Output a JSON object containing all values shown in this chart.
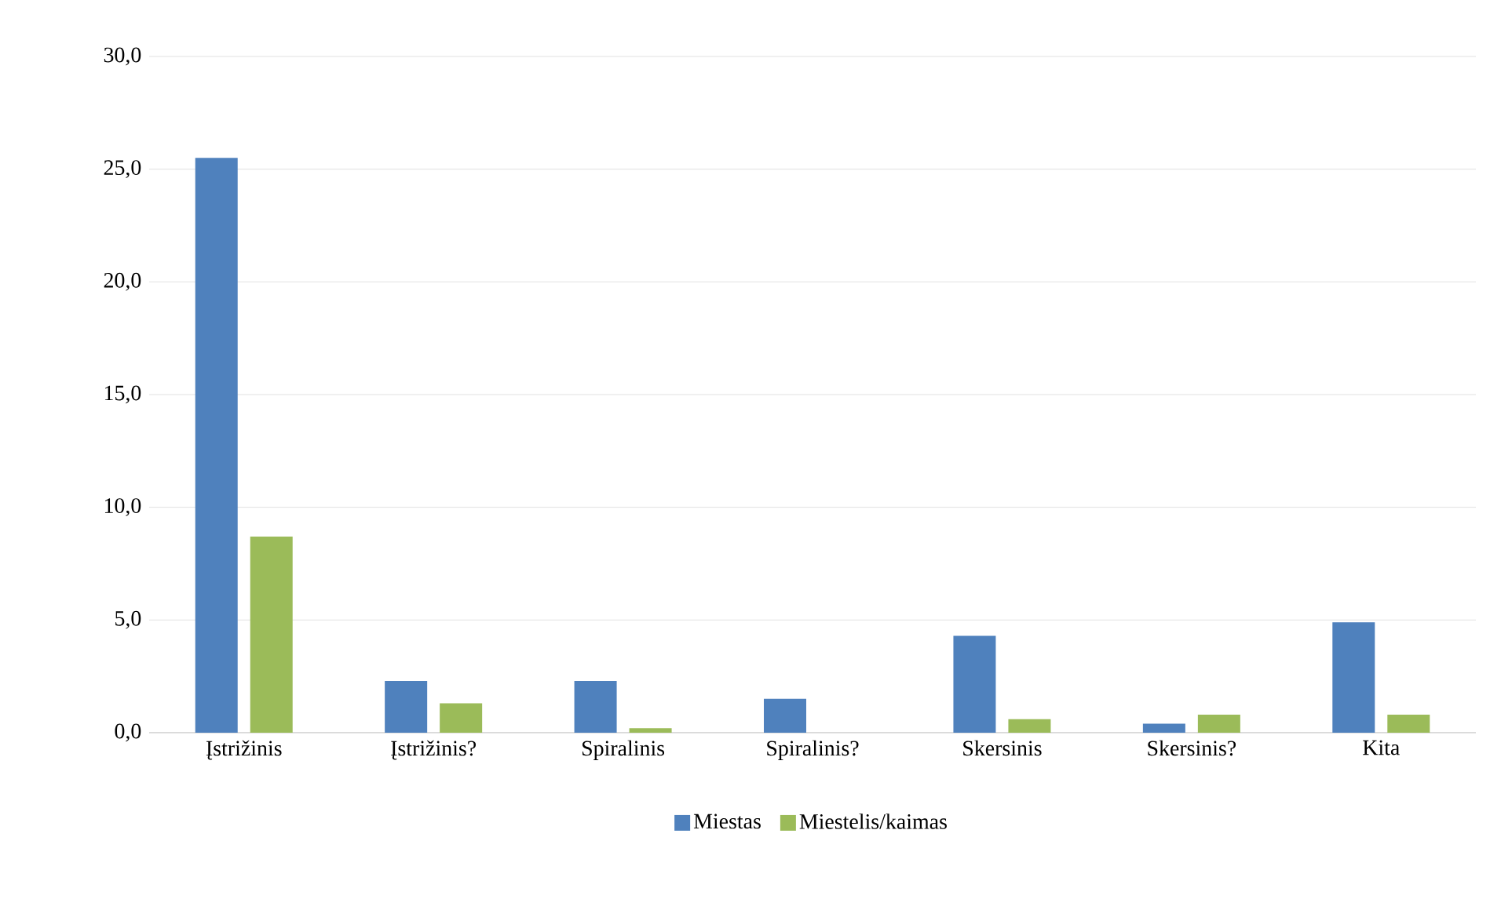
{
  "chart_data": {
    "type": "bar",
    "categories": [
      "Įstrižinis",
      "Įstrižinis?",
      "Spiralinis",
      "Spiralinis?",
      "Skersinis",
      "Skersinis?",
      "Kita"
    ],
    "series": [
      {
        "name": "Miestas",
        "color": "#4f81bd",
        "values": [
          25.5,
          2.3,
          2.3,
          1.5,
          4.3,
          0.4,
          4.9
        ]
      },
      {
        "name": "Miestelis/kaimas",
        "color": "#9bbb59",
        "values": [
          8.7,
          1.3,
          0.2,
          0.0,
          0.6,
          0.8,
          0.8
        ]
      }
    ],
    "ylim": [
      0,
      30
    ],
    "yticks": [
      {
        "value": 0,
        "label": "0,0"
      },
      {
        "value": 5,
        "label": "5,0"
      },
      {
        "value": 10,
        "label": "10,0"
      },
      {
        "value": 15,
        "label": "15,0"
      },
      {
        "value": 20,
        "label": "20,0"
      },
      {
        "value": 25,
        "label": "25,0"
      },
      {
        "value": 30,
        "label": "30,0"
      }
    ],
    "grid": "y",
    "legend": "bottom"
  }
}
